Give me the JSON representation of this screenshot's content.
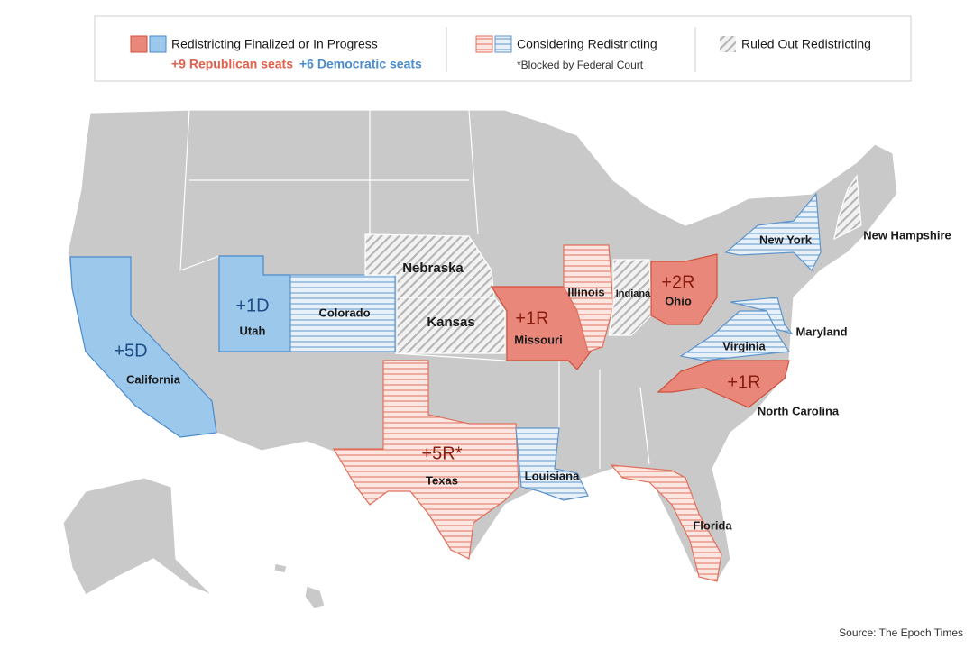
{
  "legend": {
    "finalized": {
      "label": "Redistricting Finalized or In Progress",
      "republican": "+9 Republican seats",
      "democratic": "+6 Democratic seats"
    },
    "considering": {
      "label": "Considering Redistricting",
      "note": "*Blocked by Federal Court"
    },
    "ruled_out": {
      "label": "Ruled Out Redistricting"
    }
  },
  "states": [
    {
      "name": "California",
      "seats": "+5D"
    },
    {
      "name": "Utah",
      "seats": "+1D"
    },
    {
      "name": "Colorado"
    },
    {
      "name": "Nebraska"
    },
    {
      "name": "Kansas"
    },
    {
      "name": "Missouri",
      "seats": "+1R"
    },
    {
      "name": "Illinois"
    },
    {
      "name": "Indiana"
    },
    {
      "name": "Ohio",
      "seats": "+2R"
    },
    {
      "name": "New York"
    },
    {
      "name": "New Hampshire"
    },
    {
      "name": "Maryland"
    },
    {
      "name": "Virginia"
    },
    {
      "name": "North Carolina",
      "seats": "+1R"
    },
    {
      "name": "Texas",
      "seats": "+5R*"
    },
    {
      "name": "Louisiana"
    },
    {
      "name": "Florida"
    }
  ],
  "source": "Source: The Epoch Times"
}
